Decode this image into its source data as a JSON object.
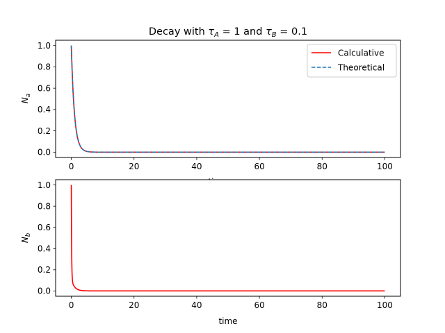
{
  "chart_data": [
    {
      "type": "line",
      "title_parts": [
        "Decay with ",
        "τ",
        "A",
        " = 1 and ",
        "τ",
        "B",
        " = 0.1"
      ],
      "title": "Decay with τA = 1 and τB = 0.1",
      "xlabel": "time",
      "ylabel_parts": [
        "N",
        "a"
      ],
      "ylabel": "Na",
      "xlim": [
        -5,
        105
      ],
      "ylim": [
        -0.05,
        1.05
      ],
      "xticks": [
        0,
        20,
        40,
        60,
        80,
        100
      ],
      "xtick_labels": [
        "0",
        "20",
        "40",
        "60",
        "80",
        "100"
      ],
      "yticks": [
        0.0,
        0.2,
        0.4,
        0.6,
        0.8,
        1.0
      ],
      "ytick_labels": [
        "0.0",
        "0.2",
        "0.4",
        "0.6",
        "0.8",
        "1.0"
      ],
      "grid": false,
      "legend_position": "top-right",
      "series": [
        {
          "name": "Calculative",
          "color": "#ff0000",
          "style": "solid",
          "tau": 1,
          "x_range": [
            0,
            100
          ],
          "y0": 1.0
        },
        {
          "name": "Theoretical",
          "color": "#1f77b4",
          "style": "dashed",
          "tau": 1,
          "x_range": [
            0,
            100
          ],
          "y0": 1.0
        }
      ]
    },
    {
      "type": "line",
      "title": "",
      "xlabel": "time",
      "ylabel_parts": [
        "N",
        "b"
      ],
      "ylabel": "Nb",
      "xlim": [
        -5,
        105
      ],
      "ylim": [
        -0.05,
        1.05
      ],
      "xticks": [
        0,
        20,
        40,
        60,
        80,
        100
      ],
      "xtick_labels": [
        "0",
        "20",
        "40",
        "60",
        "80",
        "100"
      ],
      "yticks": [
        0.0,
        0.2,
        0.4,
        0.6,
        0.8,
        1.0
      ],
      "ytick_labels": [
        "0.0",
        "0.2",
        "0.4",
        "0.6",
        "0.8",
        "1.0"
      ],
      "grid": false,
      "series": [
        {
          "color": "#ff0000",
          "style": "solid",
          "tau_a": 1,
          "tau_b": 0.1,
          "x_range": [
            0,
            100
          ],
          "y0": 1.0
        }
      ]
    }
  ]
}
